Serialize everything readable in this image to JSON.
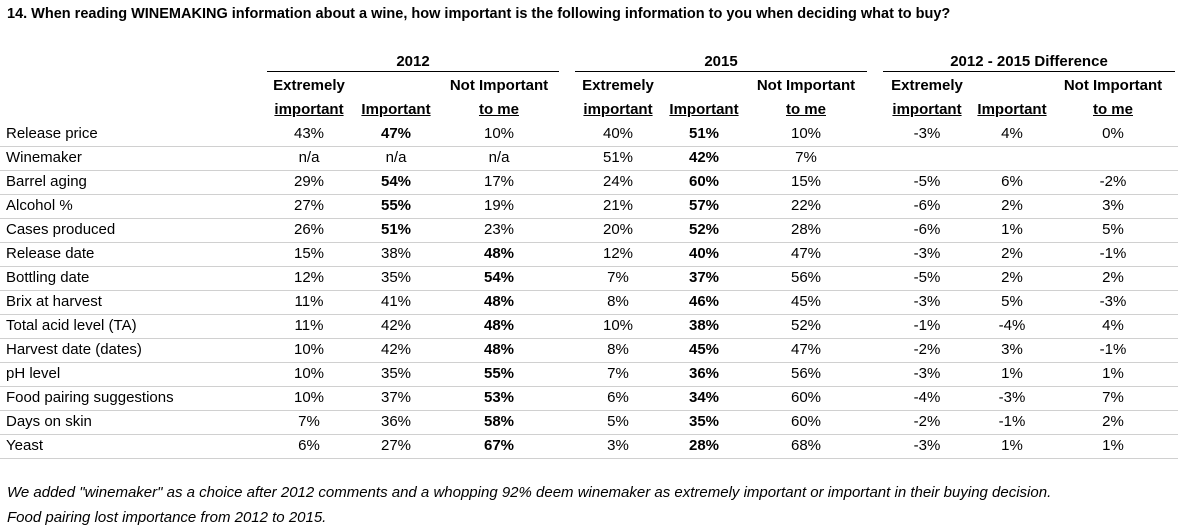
{
  "title": "14. When reading WINEMAKING information about a wine, how important is the following information to you when deciding what to buy?",
  "groups": [
    "2012",
    "2015",
    "2012 - 2015 Difference"
  ],
  "col_headers": {
    "extremely_line1": "Extremely",
    "extremely_line2": "important",
    "important": "Important",
    "not_line1": "Not Important",
    "not_line2": "to me"
  },
  "rows": [
    {
      "label": "Release price",
      "v2012": [
        "43%",
        "47%",
        "10%"
      ],
      "v2015": [
        "40%",
        "51%",
        "10%"
      ],
      "diff": [
        "-3%",
        "4%",
        "0%"
      ],
      "bold2012": 1,
      "bold2015": 1
    },
    {
      "label": "Winemaker",
      "v2012": [
        "n/a",
        "n/a",
        "n/a"
      ],
      "v2015": [
        "51%",
        "42%",
        "7%"
      ],
      "diff": [
        "",
        "",
        ""
      ],
      "bold2012": -1,
      "bold2015": 1
    },
    {
      "label": "Barrel aging",
      "v2012": [
        "29%",
        "54%",
        "17%"
      ],
      "v2015": [
        "24%",
        "60%",
        "15%"
      ],
      "diff": [
        "-5%",
        "6%",
        "-2%"
      ],
      "bold2012": 1,
      "bold2015": 1
    },
    {
      "label": "Alcohol %",
      "v2012": [
        "27%",
        "55%",
        "19%"
      ],
      "v2015": [
        "21%",
        "57%",
        "22%"
      ],
      "diff": [
        "-6%",
        "2%",
        "3%"
      ],
      "bold2012": 1,
      "bold2015": 1
    },
    {
      "label": "Cases produced",
      "v2012": [
        "26%",
        "51%",
        "23%"
      ],
      "v2015": [
        "20%",
        "52%",
        "28%"
      ],
      "diff": [
        "-6%",
        "1%",
        "5%"
      ],
      "bold2012": 1,
      "bold2015": 1
    },
    {
      "label": "Release date",
      "v2012": [
        "15%",
        "38%",
        "48%"
      ],
      "v2015": [
        "12%",
        "40%",
        "47%"
      ],
      "diff": [
        "-3%",
        "2%",
        "-1%"
      ],
      "bold2012": 2,
      "bold2015": 1
    },
    {
      "label": "Bottling date",
      "v2012": [
        "12%",
        "35%",
        "54%"
      ],
      "v2015": [
        "7%",
        "37%",
        "56%"
      ],
      "diff": [
        "-5%",
        "2%",
        "2%"
      ],
      "bold2012": 2,
      "bold2015": 1
    },
    {
      "label": "Brix at harvest",
      "v2012": [
        "11%",
        "41%",
        "48%"
      ],
      "v2015": [
        "8%",
        "46%",
        "45%"
      ],
      "diff": [
        "-3%",
        "5%",
        "-3%"
      ],
      "bold2012": 2,
      "bold2015": 1
    },
    {
      "label": "Total acid level (TA)",
      "v2012": [
        "11%",
        "42%",
        "48%"
      ],
      "v2015": [
        "10%",
        "38%",
        "52%"
      ],
      "diff": [
        "-1%",
        "-4%",
        "4%"
      ],
      "bold2012": 2,
      "bold2015": 1
    },
    {
      "label": "Harvest date (dates)",
      "v2012": [
        "10%",
        "42%",
        "48%"
      ],
      "v2015": [
        "8%",
        "45%",
        "47%"
      ],
      "diff": [
        "-2%",
        "3%",
        "-1%"
      ],
      "bold2012": 2,
      "bold2015": 1
    },
    {
      "label": "pH level",
      "v2012": [
        "10%",
        "35%",
        "55%"
      ],
      "v2015": [
        "7%",
        "36%",
        "56%"
      ],
      "diff": [
        "-3%",
        "1%",
        "1%"
      ],
      "bold2012": 2,
      "bold2015": 1
    },
    {
      "label": "Food pairing suggestions",
      "v2012": [
        "10%",
        "37%",
        "53%"
      ],
      "v2015": [
        "6%",
        "34%",
        "60%"
      ],
      "diff": [
        "-4%",
        "-3%",
        "7%"
      ],
      "bold2012": 2,
      "bold2015": 1
    },
    {
      "label": "Days on skin",
      "v2012": [
        "7%",
        "36%",
        "58%"
      ],
      "v2015": [
        "5%",
        "35%",
        "60%"
      ],
      "diff": [
        "-2%",
        "-1%",
        "2%"
      ],
      "bold2012": 2,
      "bold2015": 1
    },
    {
      "label": "Yeast",
      "v2012": [
        "6%",
        "27%",
        "67%"
      ],
      "v2015": [
        "3%",
        "28%",
        "68%"
      ],
      "diff": [
        "-3%",
        "1%",
        "1%"
      ],
      "bold2012": 2,
      "bold2015": 1
    }
  ],
  "footer": [
    "We added \"winemaker\" as a choice after 2012 comments and a whopping 92% deem winemaker as extremely important or important in their buying decision.",
    "Food pairing lost importance from 2012 to 2015."
  ]
}
